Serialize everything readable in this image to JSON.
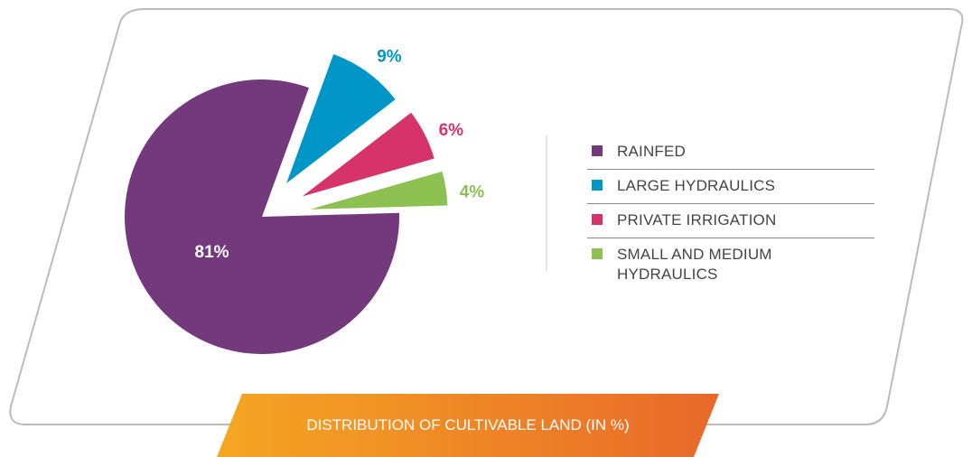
{
  "chart_data": {
    "type": "pie",
    "title": "DISTRIBUTION OF CULTIVABLE LAND (IN %)",
    "categories": [
      "RAINFED",
      "LARGE HYDRAULICS",
      "PRIVATE IRRIGATION",
      "SMALL AND MEDIUM HYDRAULICS"
    ],
    "values": [
      81,
      9,
      6,
      4
    ],
    "value_labels": [
      "81%",
      "9%",
      "6%",
      "4%"
    ],
    "colors": [
      "#73397c",
      "#0096c8",
      "#d7336b",
      "#8cc152"
    ],
    "legend": "right"
  }
}
